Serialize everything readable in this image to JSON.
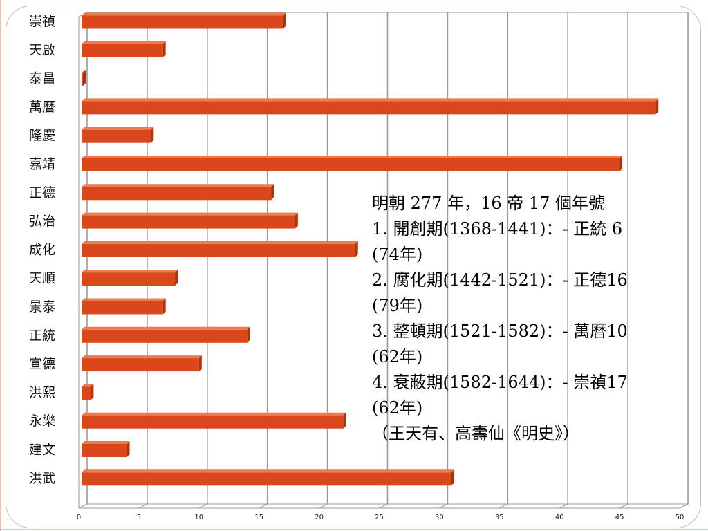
{
  "chart_data": {
    "type": "bar",
    "orientation": "horizontal",
    "categories": [
      "崇禎",
      "天啟",
      "泰昌",
      "萬曆",
      "隆慶",
      "嘉靖",
      "正德",
      "弘治",
      "成化",
      "天順",
      "景泰",
      "正統",
      "宣德",
      "洪熙",
      "永樂",
      "建文",
      "洪武"
    ],
    "values": [
      17,
      7,
      0.1,
      48,
      6,
      45,
      16,
      18,
      23,
      8,
      7,
      14,
      10,
      1,
      22,
      4,
      31
    ],
    "xlim": [
      0,
      50
    ],
    "xticks": [
      "0",
      "5",
      "10",
      "15",
      "20",
      "25",
      "30",
      "35",
      "40",
      "45",
      "50"
    ],
    "grid": true,
    "colors": {
      "bar": "#d9481c",
      "bar_top": "#ee7a50",
      "bar_side": "#a83410"
    }
  },
  "annotation": {
    "lines": [
      "明朝 277 年，16 帝 17 個年號",
      "1. 開創期(1368-1441)：- 正統 6",
      "(74年)",
      "2. 腐化期(1442-1521)：- 正德16",
      "(79年)",
      "3. 整頓期(1521-1582)：- 萬曆10",
      "(62年)",
      "4. 衰蔽期(1582-1644)：- 崇禎17",
      "(62年)",
      "（王天有、高壽仙《明史》）"
    ]
  }
}
